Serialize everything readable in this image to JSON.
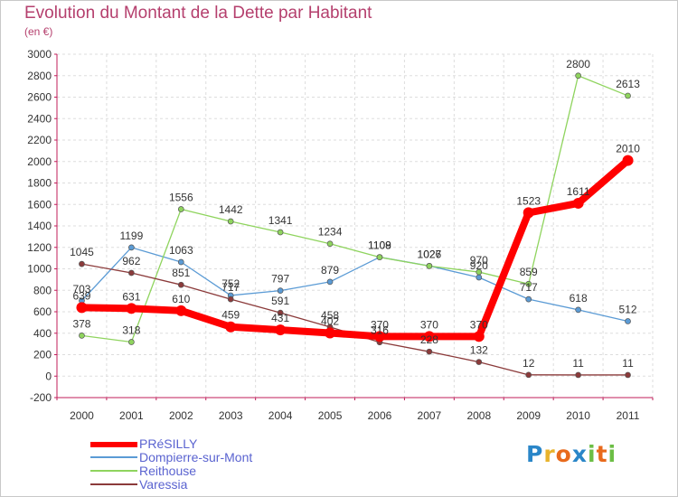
{
  "header": {
    "title": "Evolution du Montant de la Dette par Habitant",
    "subtitle": "(en €)"
  },
  "logo": {
    "text": "Proxiti",
    "colors": [
      "#2a86c8",
      "#e8b32c",
      "#e86a1c",
      "#2a86c8",
      "#6cbe45",
      "#e86a1c",
      "#6cbe45"
    ]
  },
  "chart_data": {
    "type": "line",
    "title": "Evolution du Montant de la Dette par Habitant",
    "subtitle": "(en €)",
    "x": [
      "2000",
      "2001",
      "2002",
      "2003",
      "2004",
      "2005",
      "2006",
      "2007",
      "2008",
      "2009",
      "2010",
      "2011"
    ],
    "ylim": [
      -200,
      3000
    ],
    "yticks": [
      -200,
      0,
      200,
      400,
      600,
      800,
      1000,
      1200,
      1400,
      1600,
      1800,
      2000,
      2200,
      2400,
      2600,
      2800,
      3000
    ],
    "grid": true,
    "legend_position": "bottom-left",
    "series": [
      {
        "name": "PRéSILLY",
        "color": "#ff0000",
        "emphasis": true,
        "values": [
          639,
          631,
          610,
          459,
          431,
          402,
          370,
          370,
          370,
          1523,
          1611,
          2010
        ],
        "labels": [
          "639",
          "631",
          "610",
          "459",
          "431",
          "402",
          "370",
          "370",
          "370",
          "1523",
          "1611",
          "2010"
        ]
      },
      {
        "name": "Dompierre-sur-Mont",
        "color": "#5b9bd5",
        "values": [
          703,
          1199,
          1063,
          752,
          797,
          879,
          1109,
          1027,
          920,
          717,
          618,
          512
        ],
        "labels": [
          "703",
          "1199",
          "1063",
          "752",
          "797",
          "879",
          "1109",
          "1027",
          "920",
          "717",
          "618",
          "512"
        ]
      },
      {
        "name": "Reithouse",
        "color": "#8fd45e",
        "values": [
          378,
          318,
          1556,
          1442,
          1341,
          1234,
          1108,
          1026,
          970,
          859,
          2800,
          2613
        ],
        "labels": [
          "378",
          "318",
          "1556",
          "1442",
          "1341",
          "1234",
          "1108",
          "1026",
          "970",
          "859",
          "2800",
          "2613"
        ]
      },
      {
        "name": "Varessia",
        "color": "#8b3a3a",
        "values": [
          1045,
          962,
          851,
          717,
          591,
          458,
          316,
          228,
          132,
          12,
          11,
          11
        ],
        "labels": [
          "1045",
          "962",
          "851",
          "717",
          "591",
          "458",
          "316",
          "228",
          "132",
          "12",
          "11",
          "11"
        ]
      }
    ]
  }
}
